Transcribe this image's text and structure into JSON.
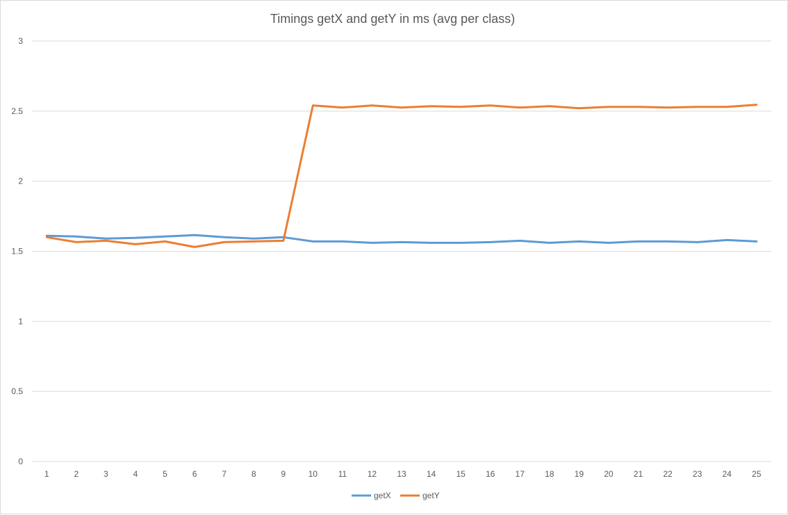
{
  "chart_data": {
    "type": "line",
    "title": "Timings getX and getY in ms (avg per class)",
    "xlabel": "",
    "ylabel": "",
    "categories": [
      "1",
      "2",
      "3",
      "4",
      "5",
      "6",
      "7",
      "8",
      "9",
      "10",
      "11",
      "12",
      "13",
      "14",
      "15",
      "16",
      "17",
      "18",
      "19",
      "20",
      "21",
      "22",
      "23",
      "24",
      "25"
    ],
    "ylim": [
      0,
      3
    ],
    "yticks": [
      "0",
      "0.5",
      "1",
      "1.5",
      "2",
      "2.5",
      "3"
    ],
    "grid": true,
    "legend_position": "bottom",
    "series": [
      {
        "name": "getX",
        "color": "#5B9BD5",
        "values": [
          1.61,
          1.605,
          1.59,
          1.595,
          1.605,
          1.615,
          1.6,
          1.59,
          1.6,
          1.57,
          1.57,
          1.56,
          1.565,
          1.56,
          1.56,
          1.565,
          1.575,
          1.56,
          1.57,
          1.56,
          1.57,
          1.57,
          1.565,
          1.58,
          1.57
        ]
      },
      {
        "name": "getY",
        "color": "#ED7D31",
        "values": [
          1.6,
          1.565,
          1.575,
          1.55,
          1.57,
          1.53,
          1.565,
          1.57,
          1.575,
          2.54,
          2.525,
          2.54,
          2.525,
          2.535,
          2.53,
          2.54,
          2.525,
          2.535,
          2.52,
          2.53,
          2.53,
          2.525,
          2.53,
          2.53,
          2.545
        ]
      }
    ]
  }
}
